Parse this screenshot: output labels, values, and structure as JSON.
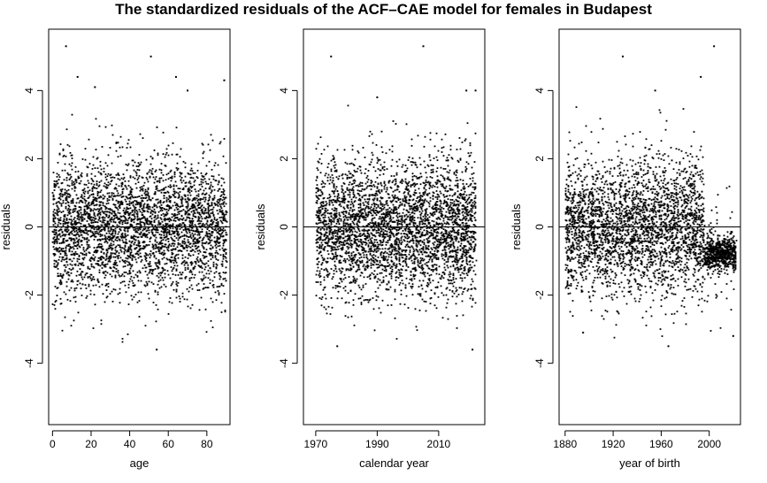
{
  "chart_data": {
    "title": "The standardized residuals of the ACF–CAE model for females in Budapest",
    "panels": [
      {
        "type": "scatter",
        "xlabel": "age",
        "ylabel": "residuals",
        "xlim": [
          -2,
          92
        ],
        "ylim": [
          -5.8,
          5.8
        ],
        "xticks": [
          0,
          20,
          40,
          60,
          80
        ],
        "yticks": [
          -4,
          -2,
          0,
          2,
          4
        ],
        "hline": 0,
        "x_range": [
          0,
          90
        ],
        "notable_points": [
          [
            7,
            5.3
          ],
          [
            51,
            5.0
          ],
          [
            13,
            4.4
          ],
          [
            22,
            4.1
          ],
          [
            64,
            4.4
          ],
          [
            70,
            4.0
          ],
          [
            89,
            4.3
          ],
          [
            54,
            -3.6
          ]
        ],
        "residual_sd": 1.0
      },
      {
        "type": "scatter",
        "xlabel": "calendar year",
        "ylabel": "residuals",
        "xlim": [
          1966,
          2025
        ],
        "ylim": [
          -5.8,
          5.8
        ],
        "xticks": [
          1970,
          1990,
          2010
        ],
        "yticks": [
          -4,
          -2,
          0,
          2,
          4
        ],
        "hline": 0,
        "x_range": [
          1970,
          2022
        ],
        "notable_points": [
          [
            2005,
            5.3
          ],
          [
            1975,
            5.0
          ],
          [
            1990,
            3.8
          ],
          [
            2022,
            4.0
          ],
          [
            2019,
            4.0
          ],
          [
            1977,
            -3.5
          ],
          [
            2021,
            -3.6
          ]
        ],
        "residual_sd": 1.0
      },
      {
        "type": "scatter",
        "xlabel": "year of birth",
        "ylabel": "residuals",
        "xlim": [
          1875,
          2026
        ],
        "ylim": [
          -5.8,
          5.8
        ],
        "xticks": [
          1880,
          1920,
          1960,
          2000
        ],
        "yticks": [
          -4,
          -2,
          0,
          2,
          4
        ],
        "hline": 0,
        "x_range": [
          1880,
          2022
        ],
        "notable_points": [
          [
            2004,
            5.3
          ],
          [
            1928,
            5.0
          ],
          [
            1993,
            4.4
          ],
          [
            1955,
            4.0
          ],
          [
            1966,
            -3.5
          ],
          [
            2020,
            -3.2
          ],
          [
            1895,
            -3.1
          ]
        ],
        "residual_sd": 1.0
      }
    ]
  }
}
